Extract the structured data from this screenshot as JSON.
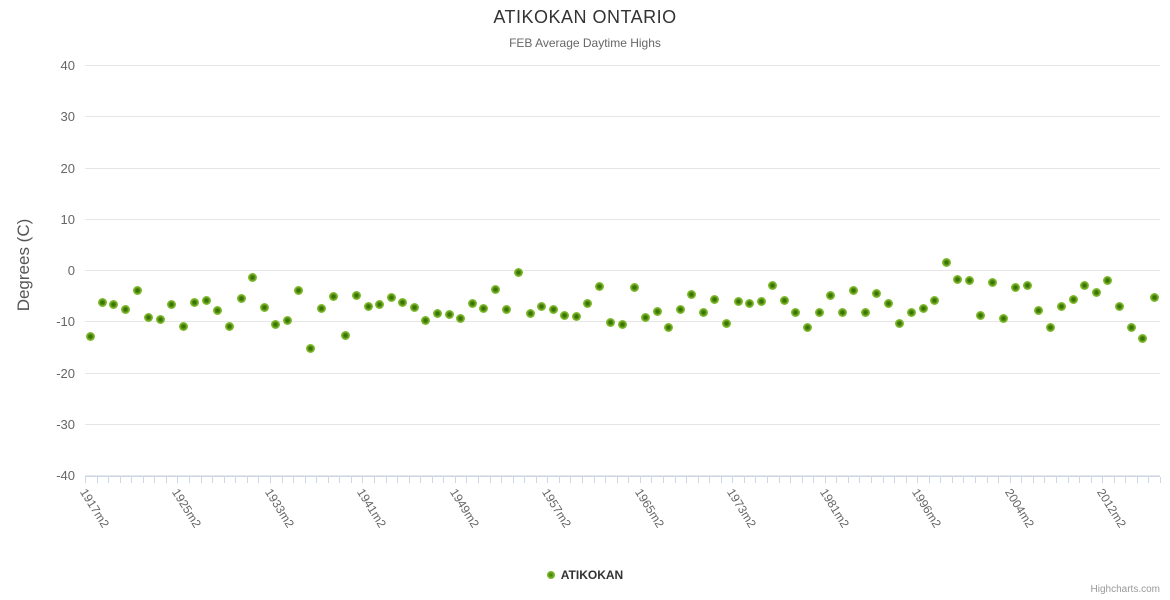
{
  "title": "ATIKOKAN ONTARIO",
  "subtitle": "FEB Average Daytime Highs",
  "y_axis": {
    "title": "Degrees (C)"
  },
  "legend": {
    "label": "ATIKOKAN"
  },
  "credits": "Highcharts.com",
  "colors": {
    "point_fill": "#7cb82b",
    "point_core": "#3a7a02",
    "grid_line": "#e6e6e6",
    "axis_line": "#ccd6eb",
    "title": "#333333",
    "subtitle": "#666666",
    "axis_label": "#666666"
  },
  "chart_data": {
    "type": "scatter",
    "title": "ATIKOKAN ONTARIO",
    "subtitle": "FEB Average Daytime Highs",
    "xlabel": "",
    "ylabel": "Degrees (C)",
    "ylim": [
      -40,
      40
    ],
    "y_tick_interval": 10,
    "grid": true,
    "legend_position": "bottom-center",
    "x_labels": [
      {
        "i": 0,
        "text": "1917m2"
      },
      {
        "i": 8,
        "text": "1925m2"
      },
      {
        "i": 16,
        "text": "1933m2"
      },
      {
        "i": 24,
        "text": "1941m2"
      },
      {
        "i": 32,
        "text": "1949m2"
      },
      {
        "i": 40,
        "text": "1957m2"
      },
      {
        "i": 48,
        "text": "1965m2"
      },
      {
        "i": 56,
        "text": "1973m2"
      },
      {
        "i": 64,
        "text": "1981m2"
      },
      {
        "i": 72,
        "text": "1996m2"
      },
      {
        "i": 80,
        "text": "2004m2"
      },
      {
        "i": 88,
        "text": "2012m2"
      }
    ],
    "series": [
      {
        "name": "ATIKOKAN",
        "values": [
          -13.0,
          -6.3,
          -6.7,
          -7.7,
          -4.0,
          -9.2,
          -9.7,
          -6.7,
          -11.0,
          -6.4,
          -5.9,
          -7.9,
          -11.0,
          -5.5,
          -1.4,
          -7.4,
          -10.7,
          -9.8,
          -4.0,
          -15.3,
          -7.6,
          -5.1,
          -12.8,
          -5.0,
          -7.2,
          -6.8,
          -5.3,
          -6.4,
          -7.4,
          -9.9,
          -8.5,
          -8.7,
          -9.4,
          -6.6,
          -7.6,
          -3.9,
          -7.7,
          -0.5,
          -8.5,
          -7.2,
          -7.7,
          -8.8,
          -9.0,
          -6.6,
          -3.2,
          -10.2,
          -10.6,
          -3.4,
          -9.3,
          -8.0,
          -11.2,
          -7.7,
          -4.7,
          -8.3,
          -5.7,
          -10.5,
          -6.2,
          -6.6,
          -6.2,
          -3.1,
          -5.9,
          -8.2,
          -11.2,
          -8.2,
          -4.9,
          -8.2,
          -4.0,
          -8.2,
          -4.6,
          -6.6,
          -10.5,
          -8.2,
          -7.6,
          -6.0,
          1.4,
          -1.9,
          -2.1,
          -8.9,
          -2.4,
          -9.4,
          -3.4,
          -3.1,
          -7.9,
          -11.2,
          -7.1,
          -5.7,
          -3.1,
          -4.3,
          -2.0,
          -7.1,
          -11.2,
          -13.3,
          -5.3
        ]
      }
    ]
  }
}
